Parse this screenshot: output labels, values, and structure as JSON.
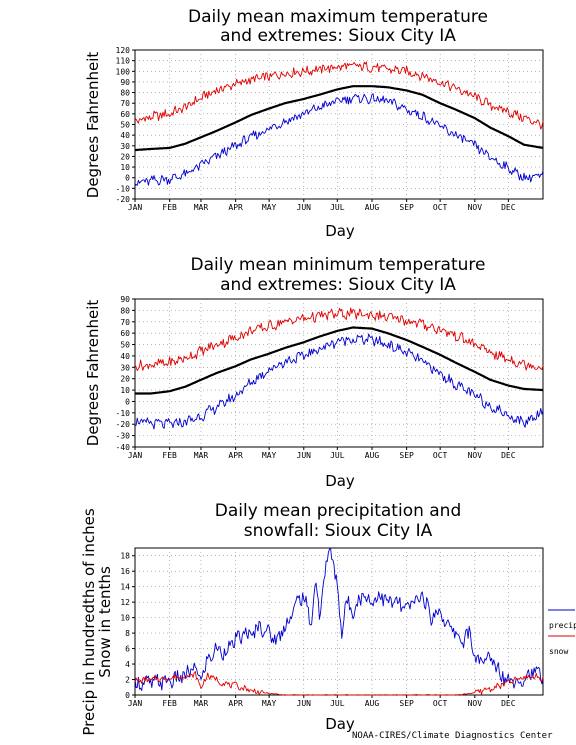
{
  "credit": "NOAA-CIRES/Climate Diagnostics Center",
  "chart_data": [
    {
      "type": "line",
      "title": [
        "Daily mean maximum temperature",
        "and extremes: Sioux City IA"
      ],
      "ylabel": "Degrees Fahrenheit",
      "xlabel": "Day",
      "x_ticks": [
        "JAN",
        "FEB",
        "MAR",
        "APR",
        "MAY",
        "JUN",
        "JUL",
        "AUG",
        "SEP",
        "OCT",
        "NOV",
        "DEC"
      ],
      "y_ticks": [
        -20,
        -10,
        0,
        10,
        20,
        30,
        40,
        50,
        60,
        70,
        80,
        90,
        100,
        110,
        120
      ],
      "ylim": [
        -20,
        120
      ],
      "grid": true,
      "series": [
        {
          "role": "mean",
          "color": "#000000",
          "x": [
            1,
            15,
            32,
            46,
            60,
            74,
            91,
            105,
            121,
            135,
            152,
            166,
            182,
            196,
            213,
            227,
            244,
            258,
            274,
            288,
            305,
            319,
            335,
            349,
            366
          ],
          "y": [
            26,
            27,
            28,
            32,
            38,
            44,
            52,
            59,
            65,
            70,
            74,
            78,
            83,
            86,
            86,
            85,
            82,
            78,
            70,
            64,
            56,
            47,
            39,
            31,
            28
          ]
        },
        {
          "role": "record high",
          "color": "#e00000",
          "x": [
            1,
            15,
            32,
            46,
            60,
            74,
            91,
            105,
            121,
            135,
            152,
            166,
            182,
            196,
            213,
            227,
            244,
            258,
            274,
            288,
            305,
            319,
            335,
            349,
            366
          ],
          "y": [
            53,
            57,
            60,
            66,
            75,
            82,
            88,
            92,
            95,
            98,
            100,
            102,
            104,
            105,
            104,
            102,
            100,
            96,
            90,
            84,
            76,
            68,
            62,
            56,
            50
          ]
        },
        {
          "role": "record low",
          "color": "#0000d0",
          "x": [
            1,
            15,
            32,
            46,
            60,
            74,
            91,
            105,
            121,
            135,
            152,
            166,
            182,
            196,
            213,
            227,
            244,
            258,
            274,
            288,
            305,
            319,
            335,
            349,
            366
          ],
          "y": [
            -5,
            -3,
            -1,
            3,
            12,
            20,
            30,
            38,
            46,
            53,
            60,
            66,
            72,
            75,
            74,
            72,
            64,
            58,
            48,
            40,
            30,
            19,
            9,
            0,
            2
          ]
        }
      ]
    },
    {
      "type": "line",
      "title": [
        "Daily mean minimum temperature",
        "and extremes: Sioux City IA"
      ],
      "ylabel": "Degrees Fahrenheit",
      "xlabel": "Day",
      "x_ticks": [
        "JAN",
        "FEB",
        "MAR",
        "APR",
        "MAY",
        "JUN",
        "JUL",
        "AUG",
        "SEP",
        "OCT",
        "NOV",
        "DEC"
      ],
      "y_ticks": [
        -40,
        -30,
        -20,
        -10,
        0,
        10,
        20,
        30,
        40,
        50,
        60,
        70,
        80,
        90
      ],
      "ylim": [
        -40,
        90
      ],
      "grid": true,
      "series": [
        {
          "role": "mean",
          "color": "#000000",
          "x": [
            1,
            15,
            32,
            46,
            60,
            74,
            91,
            105,
            121,
            135,
            152,
            166,
            182,
            196,
            213,
            227,
            244,
            258,
            274,
            288,
            305,
            319,
            335,
            349,
            366
          ],
          "y": [
            7,
            7,
            9,
            13,
            19,
            25,
            31,
            37,
            42,
            47,
            52,
            57,
            62,
            65,
            64,
            60,
            54,
            48,
            41,
            34,
            26,
            19,
            14,
            11,
            10
          ]
        },
        {
          "role": "record high",
          "color": "#e00000",
          "x": [
            1,
            15,
            32,
            46,
            60,
            74,
            91,
            105,
            121,
            135,
            152,
            166,
            182,
            196,
            213,
            227,
            244,
            258,
            274,
            288,
            305,
            319,
            335,
            349,
            366
          ],
          "y": [
            31,
            32,
            34,
            38,
            44,
            50,
            56,
            62,
            66,
            70,
            73,
            75,
            77,
            77,
            76,
            74,
            71,
            68,
            63,
            58,
            50,
            43,
            37,
            33,
            30
          ]
        },
        {
          "role": "record low",
          "color": "#0000d0",
          "x": [
            1,
            15,
            32,
            46,
            60,
            74,
            91,
            105,
            121,
            135,
            152,
            166,
            182,
            196,
            213,
            227,
            244,
            258,
            274,
            288,
            305,
            319,
            335,
            349,
            366
          ],
          "y": [
            -18,
            -19,
            -20,
            -18,
            -13,
            -5,
            5,
            17,
            28,
            35,
            40,
            46,
            53,
            55,
            54,
            50,
            43,
            35,
            24,
            15,
            5,
            -4,
            -12,
            -19,
            -8
          ]
        }
      ]
    },
    {
      "type": "line",
      "title": [
        "Daily mean precipitation and",
        "snowfall: Sioux City IA"
      ],
      "ylabel": [
        "Precip in hundredths of inches",
        "Snow in tenths"
      ],
      "xlabel": "Day",
      "x_ticks": [
        "JAN",
        "FEB",
        "MAR",
        "APR",
        "MAY",
        "JUN",
        "JUL",
        "AUG",
        "SEP",
        "OCT",
        "NOV",
        "DEC"
      ],
      "y_ticks": [
        0,
        2,
        4,
        6,
        8,
        10,
        12,
        14,
        16,
        18
      ],
      "ylim": [
        0,
        19
      ],
      "grid": true,
      "legend": "right",
      "series": [
        {
          "name": "precip",
          "color": "#0000d0",
          "x": [
            1,
            15,
            32,
            46,
            55,
            60,
            66,
            74,
            80,
            91,
            100,
            105,
            112,
            121,
            128,
            135,
            140,
            146,
            152,
            158,
            163,
            166,
            172,
            176,
            182,
            186,
            190,
            196,
            205,
            213,
            220,
            227,
            235,
            244,
            250,
            258,
            266,
            274,
            280,
            288,
            294,
            300,
            305,
            312,
            319,
            327,
            335,
            342,
            349,
            356,
            366
          ],
          "y": [
            1.5,
            1.6,
            1.8,
            2.5,
            3.5,
            2.0,
            4.5,
            6,
            5.5,
            7,
            8,
            7.5,
            9,
            8,
            7,
            9,
            10,
            12,
            13,
            9,
            15,
            10,
            17,
            19,
            14,
            8,
            12,
            11,
            13,
            12,
            13,
            12,
            12,
            11,
            12,
            13,
            10,
            11,
            9,
            8,
            7,
            8,
            5,
            4,
            5,
            3,
            2,
            2,
            2,
            3,
            2.5
          ]
        },
        {
          "name": "snow",
          "color": "#e00000",
          "x": [
            1,
            15,
            32,
            46,
            55,
            60,
            66,
            74,
            80,
            91,
            100,
            110,
            121,
            135,
            152,
            166,
            182,
            196,
            213,
            227,
            244,
            258,
            274,
            288,
            296,
            305,
            312,
            319,
            327,
            335,
            342,
            349,
            356,
            366
          ],
          "y": [
            1.8,
            2.0,
            2.2,
            2.4,
            2.6,
            1.0,
            2.5,
            2.0,
            1.5,
            1.2,
            0.8,
            0.4,
            0.2,
            0,
            0,
            0,
            0,
            0,
            0,
            0,
            0,
            0,
            0,
            0,
            0.1,
            0.3,
            0.6,
            0.8,
            1.2,
            1.6,
            2.0,
            2.2,
            2.4,
            2.2
          ]
        }
      ]
    }
  ]
}
